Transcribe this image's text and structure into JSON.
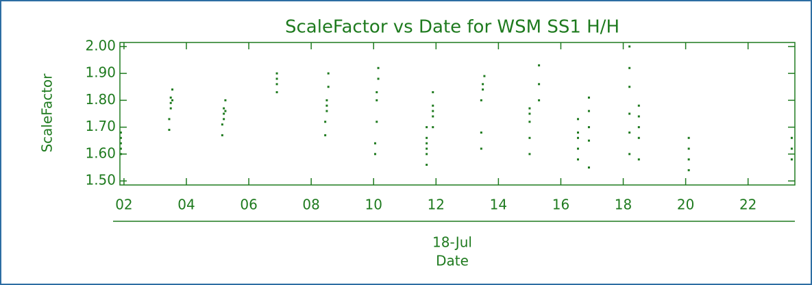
{
  "chart_data": {
    "type": "scatter",
    "title": "ScaleFactor vs Date for WSM SS1 H/H",
    "y_label": "ScaleFactor",
    "x_date": "18-Jul",
    "x_label": "Date",
    "color": "#1e7a1e",
    "xlim": [
      1.87,
      23.5
    ],
    "ylim": [
      1.485,
      2.015
    ],
    "xticks": [
      {
        "value": 2,
        "label": "02"
      },
      {
        "value": 4,
        "label": "04"
      },
      {
        "value": 6,
        "label": "06"
      },
      {
        "value": 8,
        "label": "08"
      },
      {
        "value": 10,
        "label": "10"
      },
      {
        "value": 12,
        "label": "12"
      },
      {
        "value": 14,
        "label": "14"
      },
      {
        "value": 16,
        "label": "16"
      },
      {
        "value": 18,
        "label": "18"
      },
      {
        "value": 20,
        "label": "20"
      },
      {
        "value": 22,
        "label": "22"
      }
    ],
    "yticks": [
      {
        "value": 1.5,
        "label": "1.50"
      },
      {
        "value": 1.6,
        "label": "1.60"
      },
      {
        "value": 1.7,
        "label": "1.70"
      },
      {
        "value": 1.8,
        "label": "1.80"
      },
      {
        "value": 1.9,
        "label": "1.90"
      },
      {
        "value": 2.0,
        "label": "2.00"
      }
    ],
    "x": [
      1.9,
      1.9,
      1.9,
      1.9,
      1.9,
      3.45,
      3.45,
      3.5,
      3.5,
      3.5,
      3.55,
      3.55,
      5.15,
      5.15,
      5.2,
      5.2,
      5.2,
      5.25,
      5.25,
      6.9,
      6.9,
      6.9,
      6.9,
      8.45,
      8.45,
      8.5,
      8.5,
      8.5,
      8.55,
      8.55,
      10.05,
      10.05,
      10.1,
      10.1,
      10.1,
      10.15,
      10.15,
      11.7,
      11.7,
      11.7,
      11.7,
      11.7,
      11.7,
      11.9,
      11.9,
      11.9,
      11.9,
      11.9,
      13.45,
      13.45,
      13.45,
      13.5,
      13.5,
      13.55,
      15.0,
      15.0,
      15.0,
      15.0,
      15.0,
      15.3,
      15.3,
      15.3,
      16.55,
      16.55,
      16.55,
      16.55,
      16.55,
      16.9,
      16.9,
      16.9,
      16.9,
      16.9,
      18.2,
      18.2,
      18.2,
      18.2,
      18.2,
      18.2,
      18.5,
      18.5,
      18.5,
      18.5,
      18.5,
      20.1,
      20.1,
      20.1,
      20.1,
      23.4,
      23.4,
      23.4
    ],
    "values": [
      1.6,
      1.62,
      1.64,
      1.66,
      1.68,
      1.69,
      1.73,
      1.77,
      1.79,
      1.81,
      1.84,
      1.8,
      1.67,
      1.71,
      1.73,
      1.75,
      1.77,
      1.8,
      1.76,
      1.83,
      1.86,
      1.88,
      1.9,
      1.67,
      1.72,
      1.76,
      1.78,
      1.8,
      1.85,
      1.9,
      1.6,
      1.64,
      1.72,
      1.8,
      1.83,
      1.88,
      1.92,
      1.56,
      1.6,
      1.62,
      1.64,
      1.66,
      1.7,
      1.7,
      1.74,
      1.76,
      1.78,
      1.83,
      1.62,
      1.68,
      1.8,
      1.84,
      1.86,
      1.89,
      1.6,
      1.66,
      1.72,
      1.75,
      1.77,
      1.8,
      1.86,
      1.93,
      1.58,
      1.62,
      1.66,
      1.68,
      1.73,
      1.55,
      1.65,
      1.7,
      1.76,
      1.81,
      1.6,
      1.68,
      1.75,
      1.85,
      1.92,
      2.0,
      1.58,
      1.66,
      1.7,
      1.74,
      1.78,
      1.54,
      1.58,
      1.62,
      1.66,
      1.58,
      1.62,
      1.66
    ]
  }
}
